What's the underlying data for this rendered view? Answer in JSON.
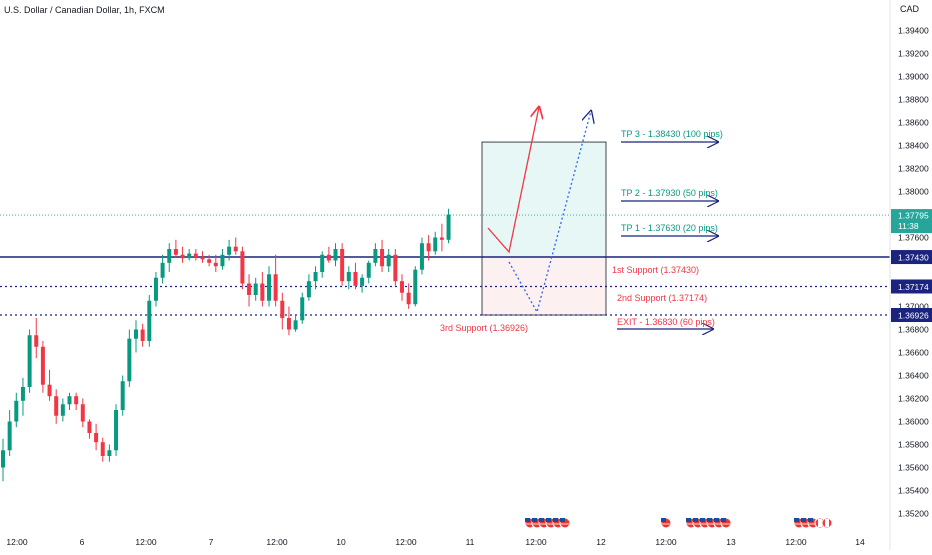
{
  "header": {
    "title": "U.S. Dollar / Canadian Dollar, 1h, FXCM"
  },
  "chart_data": {
    "type": "candlestick",
    "currency_label": "CAD",
    "ylim": [
      1.351,
      1.396
    ],
    "price_ticks": [
      "1.35200",
      "1.35400",
      "1.35600",
      "1.35800",
      "1.36000",
      "1.36200",
      "1.36400",
      "1.36600",
      "1.36800",
      "1.37000",
      "1.37200",
      "1.37400",
      "1.37600",
      "1.37800",
      "1.38000",
      "1.38200",
      "1.38400",
      "1.38600",
      "1.38800",
      "1.39000",
      "1.39200",
      "1.39400"
    ],
    "time_ticks": [
      "12:00",
      "6",
      "12:00",
      "7",
      "12:00",
      "10",
      "12:00",
      "11",
      "12:00",
      "12",
      "12:00",
      "13",
      "12:00",
      "14"
    ],
    "current_price": {
      "value": 1.37795,
      "label": "1.37795",
      "countdown": "11:38",
      "color": "#26a69a"
    },
    "horizontal_levels": [
      {
        "value": 1.3743,
        "label": "1.37430",
        "style": "solid",
        "color": "#1a237e"
      },
      {
        "value": 1.37174,
        "label": "1.37174",
        "style": "dotted",
        "color": "#1a237e"
      },
      {
        "value": 1.36926,
        "label": "1.36926",
        "style": "dotted",
        "color": "#1a237e"
      }
    ],
    "annotations": {
      "tp3": "TP 3 - 1.38430 (100 pips)",
      "tp2": "TP 2 - 1.37930 (50 pips)",
      "tp1": "TP 1 - 1.37630 (20 pips)",
      "support1": "1st Support (1.37430)",
      "support2": "2nd Support (1.37174)",
      "support3": "3rd Support (1.36926)",
      "exit": "EXIT - 1.36830 (60 pips)"
    },
    "profit_zone": [
      1.3743,
      1.3843
    ],
    "loss_zone": [
      1.36926,
      1.3743
    ],
    "candles": [
      [
        1.356,
        1.3585,
        1.3548,
        1.3575
      ],
      [
        1.3575,
        1.361,
        1.357,
        1.36
      ],
      [
        1.36,
        1.3625,
        1.3595,
        1.3618
      ],
      [
        1.3618,
        1.3638,
        1.3605,
        1.363
      ],
      [
        1.363,
        1.368,
        1.3625,
        1.3675
      ],
      [
        1.3675,
        1.369,
        1.3655,
        1.3665
      ],
      [
        1.3665,
        1.367,
        1.3625,
        1.3632
      ],
      [
        1.3632,
        1.3645,
        1.3618,
        1.3622
      ],
      [
        1.3622,
        1.3628,
        1.3598,
        1.3605
      ],
      [
        1.3605,
        1.362,
        1.36,
        1.3615
      ],
      [
        1.3615,
        1.3625,
        1.361,
        1.3622
      ],
      [
        1.3622,
        1.3625,
        1.361,
        1.3615
      ],
      [
        1.3615,
        1.362,
        1.3595,
        1.36
      ],
      [
        1.36,
        1.3602,
        1.3585,
        1.359
      ],
      [
        1.359,
        1.3598,
        1.3575,
        1.3582
      ],
      [
        1.3582,
        1.3586,
        1.3565,
        1.357
      ],
      [
        1.357,
        1.358,
        1.3565,
        1.3575
      ],
      [
        1.3575,
        1.3615,
        1.357,
        1.361
      ],
      [
        1.361,
        1.364,
        1.3605,
        1.3635
      ],
      [
        1.3635,
        1.368,
        1.363,
        1.3672
      ],
      [
        1.3672,
        1.3688,
        1.366,
        1.368
      ],
      [
        1.368,
        1.3685,
        1.3665,
        1.367
      ],
      [
        1.367,
        1.371,
        1.3665,
        1.3705
      ],
      [
        1.3705,
        1.373,
        1.37,
        1.3725
      ],
      [
        1.3725,
        1.3745,
        1.372,
        1.3738
      ],
      [
        1.3738,
        1.3755,
        1.373,
        1.375
      ],
      [
        1.375,
        1.3758,
        1.3742,
        1.3745
      ],
      [
        1.3745,
        1.3752,
        1.3738,
        1.3742
      ],
      [
        1.3742,
        1.375,
        1.374,
        1.3746
      ],
      [
        1.3746,
        1.375,
        1.374,
        1.3743
      ],
      [
        1.3743,
        1.3748,
        1.3738,
        1.3741
      ],
      [
        1.3741,
        1.3745,
        1.3735,
        1.3738
      ],
      [
        1.3738,
        1.3745,
        1.373,
        1.3735
      ],
      [
        1.3735,
        1.375,
        1.3732,
        1.3745
      ],
      [
        1.3745,
        1.3758,
        1.374,
        1.3752
      ],
      [
        1.3752,
        1.376,
        1.3745,
        1.3748
      ],
      [
        1.3748,
        1.3752,
        1.3715,
        1.372
      ],
      [
        1.372,
        1.3728,
        1.37,
        1.371
      ],
      [
        1.371,
        1.3725,
        1.3705,
        1.372
      ],
      [
        1.372,
        1.373,
        1.37,
        1.3705
      ],
      [
        1.3705,
        1.3735,
        1.37,
        1.3728
      ],
      [
        1.3728,
        1.3745,
        1.37,
        1.3705
      ],
      [
        1.3705,
        1.3712,
        1.368,
        1.369
      ],
      [
        1.369,
        1.37,
        1.3675,
        1.368
      ],
      [
        1.368,
        1.3692,
        1.3678,
        1.3688
      ],
      [
        1.3688,
        1.3712,
        1.3685,
        1.3708
      ],
      [
        1.3708,
        1.3728,
        1.3705,
        1.3722
      ],
      [
        1.3722,
        1.3735,
        1.3715,
        1.373
      ],
      [
        1.373,
        1.3748,
        1.3725,
        1.3745
      ],
      [
        1.3745,
        1.3752,
        1.3738,
        1.374
      ],
      [
        1.374,
        1.3755,
        1.3735,
        1.375
      ],
      [
        1.375,
        1.3755,
        1.3718,
        1.3722
      ],
      [
        1.3722,
        1.3735,
        1.3715,
        1.373
      ],
      [
        1.373,
        1.3738,
        1.3715,
        1.3718
      ],
      [
        1.3718,
        1.3728,
        1.3712,
        1.3725
      ],
      [
        1.3725,
        1.374,
        1.372,
        1.3738
      ],
      [
        1.3738,
        1.3755,
        1.3735,
        1.375
      ],
      [
        1.375,
        1.3758,
        1.373,
        1.3735
      ],
      [
        1.3735,
        1.375,
        1.373,
        1.3745
      ],
      [
        1.3745,
        1.375,
        1.3718,
        1.3722
      ],
      [
        1.3722,
        1.3728,
        1.3705,
        1.3712
      ],
      [
        1.3712,
        1.372,
        1.3698,
        1.3702
      ],
      [
        1.3702,
        1.3735,
        1.37,
        1.3732
      ],
      [
        1.3732,
        1.376,
        1.3728,
        1.3755
      ],
      [
        1.3755,
        1.3762,
        1.374,
        1.3748
      ],
      [
        1.3748,
        1.3765,
        1.3745,
        1.376
      ],
      [
        1.376,
        1.3772,
        1.3748,
        1.3758
      ],
      [
        1.3758,
        1.3785,
        1.3755,
        1.378
      ]
    ]
  }
}
